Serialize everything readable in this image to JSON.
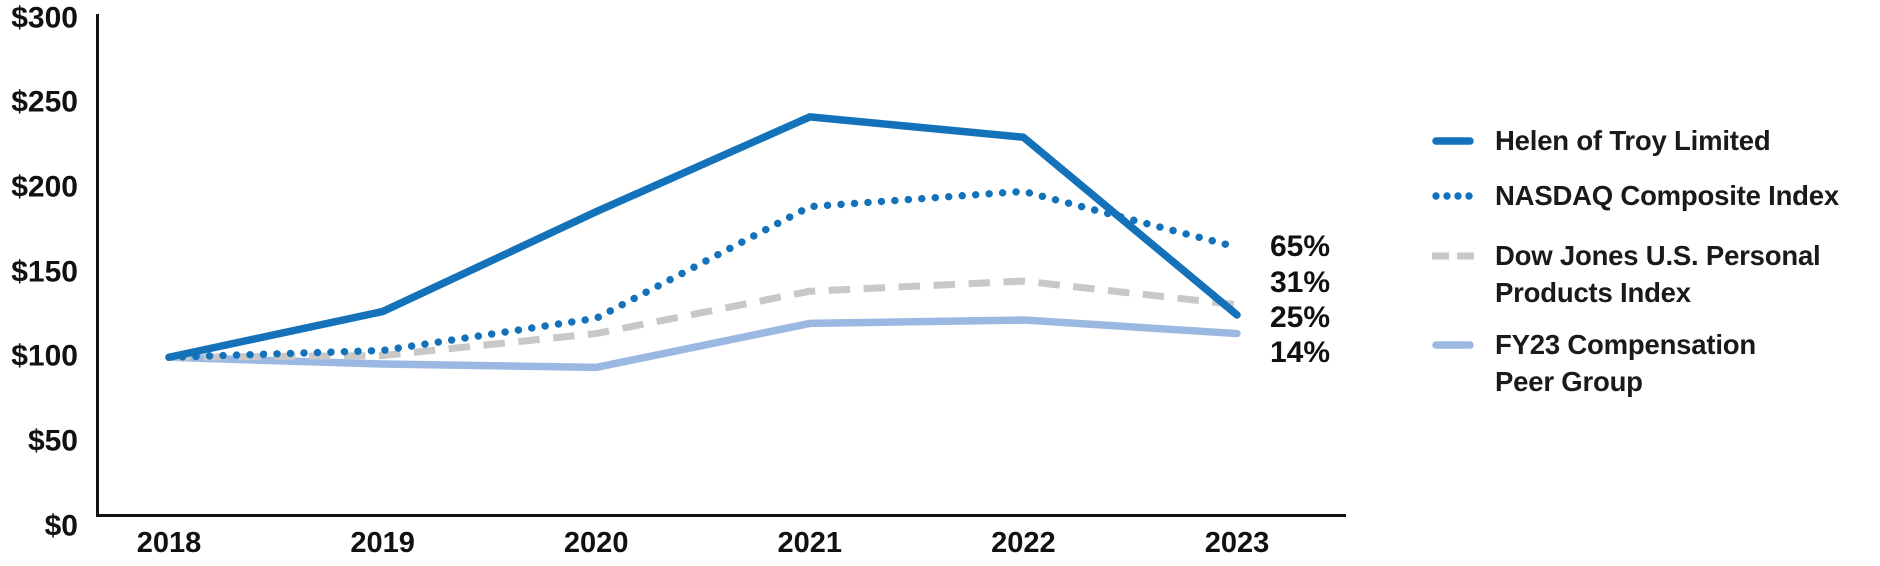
{
  "page": {
    "background": "#ffffff"
  },
  "chart_data": {
    "type": "line",
    "title": "",
    "x_labels": [
      "2018",
      "2019",
      "2020",
      "2021",
      "2022",
      "2023"
    ],
    "y_axis": {
      "min": 0,
      "max": 300,
      "step": 50,
      "tick_labels": [
        "$0",
        "$50",
        "$100",
        "$150",
        "$200",
        "$250",
        "$300"
      ]
    },
    "series": [
      {
        "name": "Helen of Troy Limited",
        "line_style": "solid",
        "color": "#1472ba",
        "values": [
          100,
          127,
          186,
          242,
          230,
          125
        ],
        "end_label": "25%"
      },
      {
        "name": "NASDAQ Composite Index",
        "line_style": "dotted",
        "color": "#1472ba",
        "values": [
          100,
          104,
          123,
          189,
          198,
          165
        ],
        "end_label": "65%"
      },
      {
        "name": "Dow Jones U.S. Personal Products Index",
        "line_style": "dashed",
        "color": "#c8c8c8",
        "values": [
          100,
          101,
          114,
          139,
          145,
          131
        ],
        "end_label": "31%"
      },
      {
        "name": "FY23 Compensation Peer Group",
        "line_style": "solid",
        "color": "#9bb8e2",
        "values": [
          100,
          96,
          94,
          120,
          122,
          114
        ],
        "end_label": "14%"
      }
    ],
    "end_labels_top_to_bottom": [
      "65%",
      "31%",
      "25%",
      "14%"
    ],
    "legend_position": "right",
    "grid": false
  },
  "legend": {
    "items": [
      {
        "lines": [
          "Helen of Troy Limited"
        ],
        "swatch": "solid",
        "color": "#1472ba"
      },
      {
        "lines": [
          "NASDAQ Composite Index"
        ],
        "swatch": "dotted",
        "color": "#1472ba"
      },
      {
        "lines": [
          "Dow Jones U.S. Personal",
          "Products Index"
        ],
        "swatch": "dashed",
        "color": "#c8c8c8"
      },
      {
        "lines": [
          "FY23 Compensation",
          "Peer Group"
        ],
        "swatch": "solid",
        "color": "#9bb8e2"
      }
    ]
  },
  "colors": {
    "accent_blue": "#1472ba",
    "light_blue": "#9bb8e2",
    "neutral_gray": "#c8c8c8",
    "axis_text": "#111111"
  }
}
